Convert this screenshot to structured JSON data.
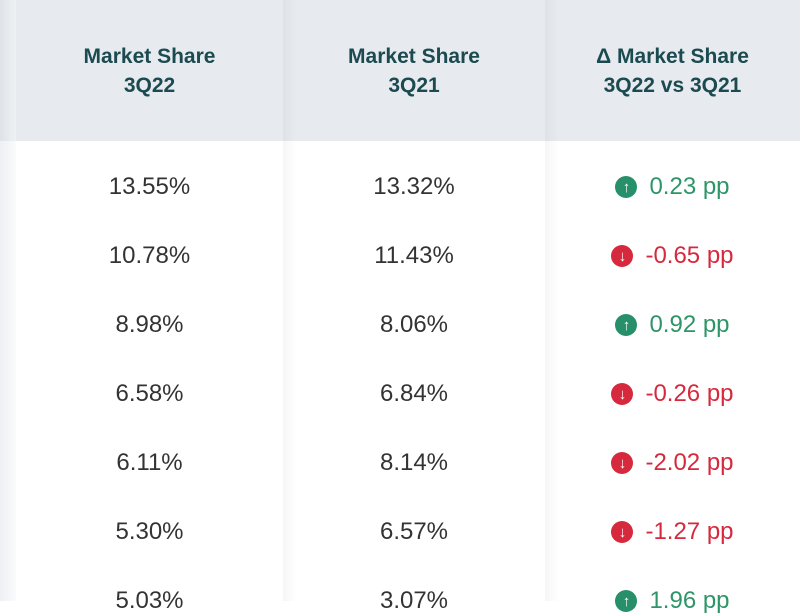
{
  "colors": {
    "header_bg": "#e7ebef",
    "header_text": "#1b4a50",
    "positive": "#2e9568",
    "negative": "#d6293d"
  },
  "headers": [
    {
      "line1": "Market Share",
      "line2": "3Q22"
    },
    {
      "line1": "Market Share",
      "line2": "3Q21"
    },
    {
      "line1": "Δ Market Share",
      "line2": "3Q22 vs 3Q21"
    }
  ],
  "rows": [
    {
      "share_3q22": "13.55%",
      "share_3q21": "13.32%",
      "delta": "0.23 pp",
      "direction": "up",
      "icon": "arrow-up-circle-icon"
    },
    {
      "share_3q22": "10.78%",
      "share_3q21": "11.43%",
      "delta": "-0.65 pp",
      "direction": "down",
      "icon": "arrow-down-circle-icon"
    },
    {
      "share_3q22": "8.98%",
      "share_3q21": "8.06%",
      "delta": "0.92 pp",
      "direction": "up",
      "icon": "arrow-up-circle-icon"
    },
    {
      "share_3q22": "6.58%",
      "share_3q21": "6.84%",
      "delta": "-0.26 pp",
      "direction": "down",
      "icon": "arrow-down-circle-icon"
    },
    {
      "share_3q22": "6.11%",
      "share_3q21": "8.14%",
      "delta": "-2.02 pp",
      "direction": "down",
      "icon": "arrow-down-circle-icon"
    },
    {
      "share_3q22": "5.30%",
      "share_3q21": "6.57%",
      "delta": "-1.27 pp",
      "direction": "down",
      "icon": "arrow-down-circle-icon"
    },
    {
      "share_3q22": "5.03%",
      "share_3q21": "3.07%",
      "delta": "1.96 pp",
      "direction": "up",
      "icon": "arrow-up-circle-icon"
    }
  ]
}
